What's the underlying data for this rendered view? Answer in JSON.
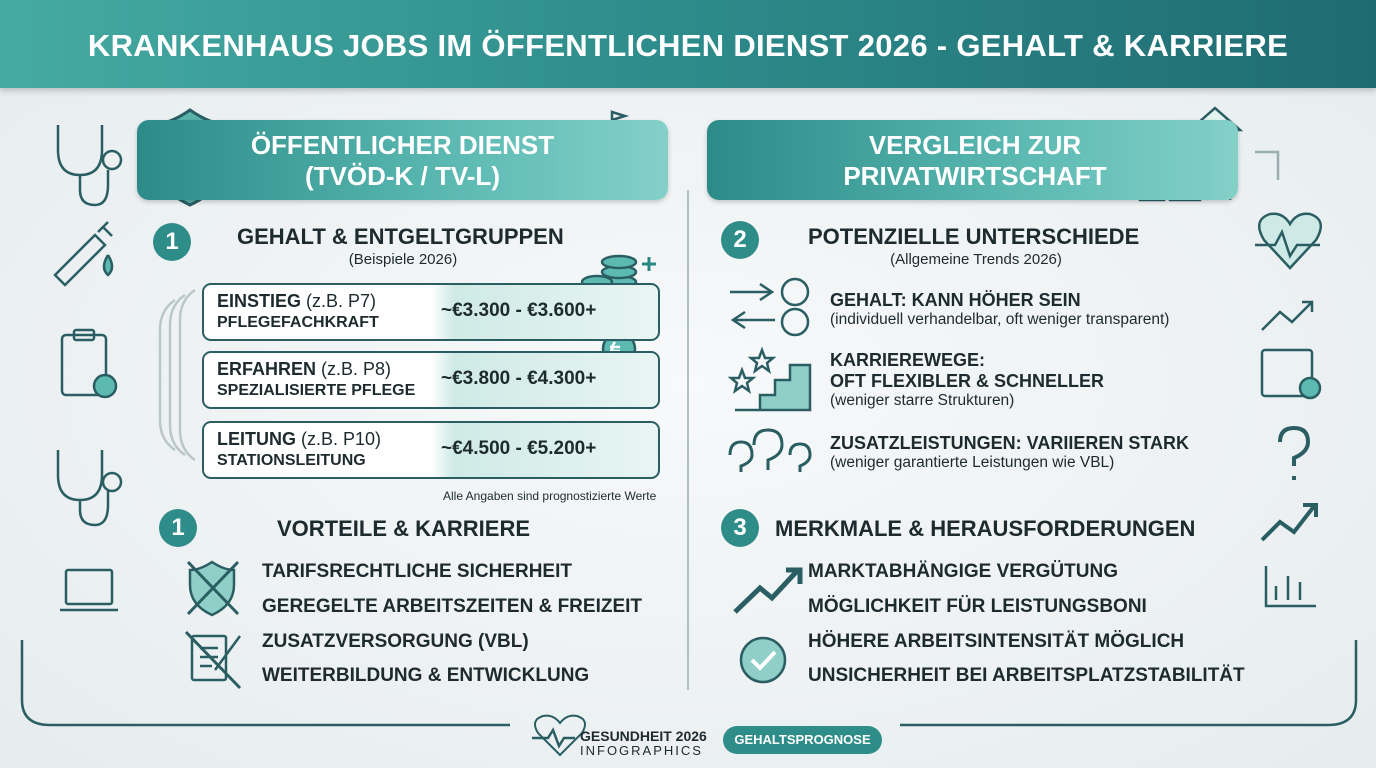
{
  "header": {
    "title": "KRANKENHAUS JOBS IM ÖFFENTLICHEN DIENST 2026 - GEHALT & KARRIERE"
  },
  "left": {
    "banner": [
      "ÖFFENTLICHER DIENST",
      "(TVÖD-K / TV-L)"
    ],
    "salary": {
      "number": 1,
      "title": "GEHALT & ENTGELTGRUPPEN",
      "subtitle": "(Beispiele 2026)",
      "rows": [
        {
          "level": "EINSTIEG",
          "group": "(z.B. P7)",
          "role": "PFLEGEFACHKRAFT",
          "range": "~€3.300 - €3.600+"
        },
        {
          "level": "ERFAHREN",
          "group": "(z.B. P8)",
          "role": "SPEZIALISIERTE PFLEGE",
          "range": "~€3.800 - €4.300+"
        },
        {
          "level": "LEITUNG",
          "group": "(z.B. P10)",
          "role": "STATIONSLEITUNG",
          "range": "~€4.500 - €5.200+"
        }
      ],
      "note": "Alle Angaben sind prognostizierte Werte"
    },
    "benefits": {
      "number": 1,
      "title": "VORTEILE & KARRIERE",
      "items": [
        "TARIFSRECHTLICHE SICHERHEIT",
        "GEREGELTE ARBEITSZEITEN & FREIZEIT",
        "ZUSATZVERSORGUNG (VBL)",
        "WEITERBILDUNG & ENTWICKLUNG"
      ]
    }
  },
  "right": {
    "banner": [
      "VERGLEICH ZUR",
      "PRIVATWIRTSCHAFT"
    ],
    "differences": {
      "number": 2,
      "title": "POTENZIELLE UNTERSCHIEDE",
      "subtitle": "(Allgemeine Trends 2026)",
      "items": [
        {
          "heading": [
            "GEHALT: KANN HÖHER SEIN"
          ],
          "detail": "(individuell verhandelbar, oft weniger transparent)"
        },
        {
          "heading": [
            "KARRIEREWEGE:",
            "OFT FLEXIBLER & SCHNELLER"
          ],
          "detail": "(weniger starre Strukturen)"
        },
        {
          "heading": [
            "ZUSATZLEISTUNGEN: VARIIEREN STARK"
          ],
          "detail": "(weniger garantierte Leistungen wie VBL)"
        }
      ]
    },
    "features": {
      "number": 3,
      "title": "MERKMALE & HERAUSFORDERUNGEN",
      "items": [
        "MARKTABHÄNGIGE VERGÜTUNG",
        "MÖGLICHKEIT FÜR LEISTUNGSBONI",
        "HÖHERE ARBEITSINTENSITÄT MÖGLICH",
        "UNSICHERHEIT BEI ARBEITSPLATZSTABILITÄT"
      ]
    }
  },
  "footer": {
    "brand": "GESUNDHEIT 2026",
    "sub": "INFOGRAPHICS",
    "badge": "GEHALTSPROGNOSE"
  }
}
